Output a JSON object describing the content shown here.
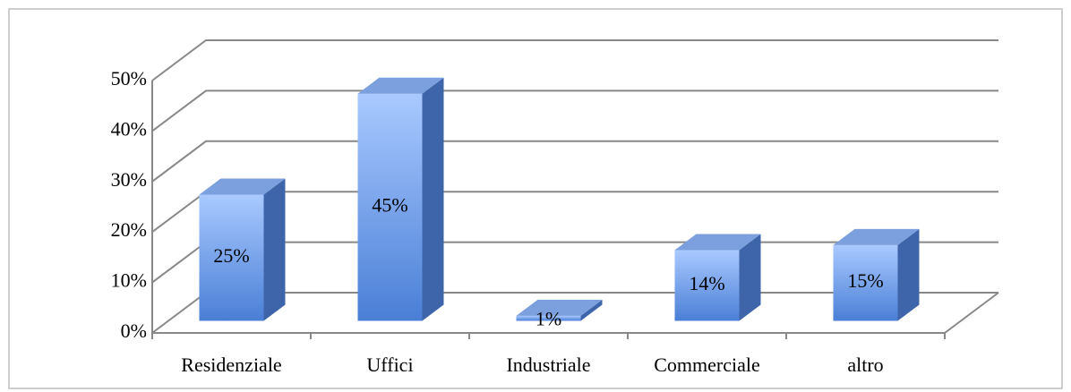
{
  "chart_data": {
    "type": "bar3d",
    "categories": [
      "Residenziale",
      "Uffici",
      "Industriale",
      "Commerciale",
      "altro"
    ],
    "values": [
      25,
      45,
      1,
      14,
      15
    ],
    "value_labels": [
      "25%",
      "45%",
      "1%",
      "14%",
      "15%"
    ],
    "ylim": [
      0,
      50
    ],
    "yticks": [
      {
        "value": 0,
        "label": "0%"
      },
      {
        "value": 10,
        "label": "10%"
      },
      {
        "value": 20,
        "label": "20%"
      },
      {
        "value": 30,
        "label": "30%"
      },
      {
        "value": 40,
        "label": "40%"
      },
      {
        "value": 50,
        "label": "50%"
      }
    ],
    "color": "#6e9ee8",
    "grid": true
  }
}
